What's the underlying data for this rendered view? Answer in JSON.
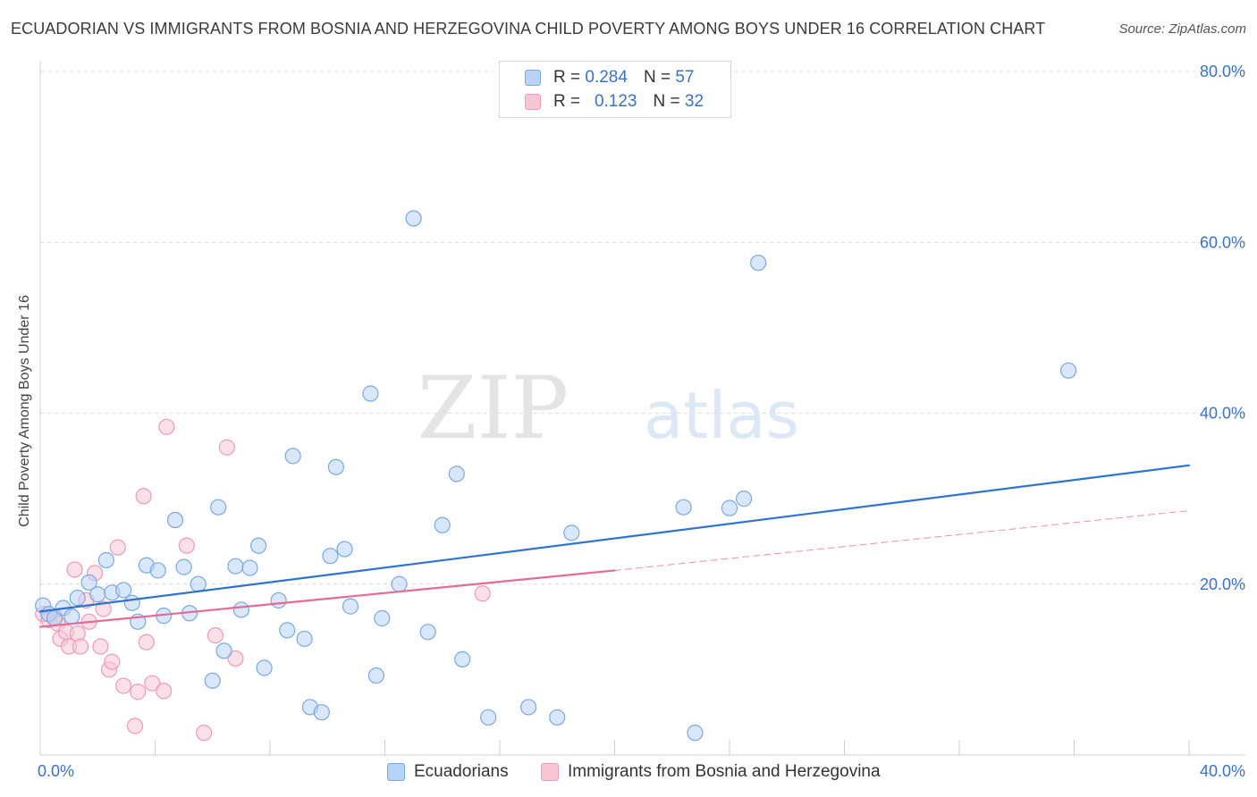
{
  "title": "ECUADORIAN VS IMMIGRANTS FROM BOSNIA AND HERZEGOVINA CHILD POVERTY AMONG BOYS UNDER 16 CORRELATION CHART",
  "source": "Source: ZipAtlas.com",
  "legend": {
    "r_label": "R =",
    "n_label": "N =",
    "rows": [
      {
        "r": "0.284",
        "n": "57"
      },
      {
        "r": "0.123",
        "n": "32"
      }
    ]
  },
  "bottom_legend": [
    "Ecuadorians",
    "Immigrants from Bosnia and Herzegovina"
  ],
  "watermark": {
    "zip": "ZIP",
    "atlas": "atlas"
  },
  "colors": {
    "blue_fill": "#b8d3f5",
    "blue_stroke": "#7aa9e0",
    "blue_line": "#2f72d0",
    "pink_fill": "#f9c6d6",
    "pink_stroke": "#ef9ab6",
    "pink_line": "#e56a95",
    "axis_text": "#3a73c4",
    "grid": "#dcdcdc"
  },
  "chart_data": {
    "type": "scatter",
    "xlabel": "",
    "ylabel": "Child Poverty Among Boys Under 16",
    "xlim": [
      0,
      40
    ],
    "ylim": [
      0,
      80
    ],
    "x_tick_labels": [
      "0.0%",
      "40.0%"
    ],
    "y_ticks": [
      20,
      40,
      60,
      80
    ],
    "y_tick_labels": [
      "20.0%",
      "40.0%",
      "60.0%",
      "80.0%"
    ],
    "series": [
      {
        "name": "Ecuadorians",
        "R": 0.284,
        "N": 57,
        "points": [
          [
            0.1,
            17.5
          ],
          [
            0.3,
            16.5
          ],
          [
            0.5,
            16.0
          ],
          [
            0.8,
            17.2
          ],
          [
            1.1,
            16.2
          ],
          [
            1.3,
            18.4
          ],
          [
            1.7,
            20.2
          ],
          [
            2.0,
            18.8
          ],
          [
            2.3,
            22.8
          ],
          [
            2.5,
            19.0
          ],
          [
            2.9,
            19.3
          ],
          [
            3.2,
            17.8
          ],
          [
            3.4,
            15.6
          ],
          [
            3.7,
            22.2
          ],
          [
            4.1,
            21.6
          ],
          [
            4.3,
            16.3
          ],
          [
            4.7,
            27.5
          ],
          [
            5.0,
            22.0
          ],
          [
            5.2,
            16.6
          ],
          [
            5.5,
            20.0
          ],
          [
            6.0,
            8.7
          ],
          [
            6.2,
            29.0
          ],
          [
            6.4,
            12.2
          ],
          [
            6.8,
            22.1
          ],
          [
            7.0,
            17.0
          ],
          [
            7.3,
            21.9
          ],
          [
            7.6,
            24.5
          ],
          [
            7.8,
            10.2
          ],
          [
            8.3,
            18.1
          ],
          [
            8.6,
            14.6
          ],
          [
            8.8,
            35.0
          ],
          [
            9.2,
            13.6
          ],
          [
            9.4,
            5.6
          ],
          [
            9.8,
            5.0
          ],
          [
            10.1,
            23.3
          ],
          [
            10.3,
            33.7
          ],
          [
            10.6,
            24.1
          ],
          [
            10.8,
            17.4
          ],
          [
            11.5,
            42.3
          ],
          [
            11.7,
            9.3
          ],
          [
            11.9,
            16.0
          ],
          [
            12.5,
            20.0
          ],
          [
            13.0,
            62.8
          ],
          [
            13.5,
            14.4
          ],
          [
            14.0,
            26.9
          ],
          [
            14.5,
            32.9
          ],
          [
            14.7,
            11.2
          ],
          [
            15.6,
            4.4
          ],
          [
            17.0,
            5.6
          ],
          [
            18.0,
            4.4
          ],
          [
            18.5,
            26.0
          ],
          [
            22.4,
            29.0
          ],
          [
            22.8,
            2.6
          ],
          [
            24.0,
            28.9
          ],
          [
            24.5,
            30.0
          ],
          [
            25.0,
            57.6
          ],
          [
            35.8,
            45.0
          ]
        ]
      },
      {
        "name": "Immigrants from Bosnia and Herzegovina",
        "R": 0.123,
        "N": 32,
        "points": [
          [
            0.1,
            16.5
          ],
          [
            0.3,
            15.8
          ],
          [
            0.5,
            16.2
          ],
          [
            0.6,
            15.4
          ],
          [
            0.7,
            13.6
          ],
          [
            0.9,
            14.4
          ],
          [
            1.0,
            12.7
          ],
          [
            1.2,
            21.7
          ],
          [
            1.3,
            14.2
          ],
          [
            1.4,
            12.7
          ],
          [
            1.6,
            18.1
          ],
          [
            1.7,
            15.6
          ],
          [
            1.9,
            21.3
          ],
          [
            2.1,
            12.7
          ],
          [
            2.2,
            17.1
          ],
          [
            2.4,
            10.0
          ],
          [
            2.5,
            10.9
          ],
          [
            2.7,
            24.3
          ],
          [
            2.9,
            8.1
          ],
          [
            3.3,
            3.4
          ],
          [
            3.4,
            7.4
          ],
          [
            3.6,
            30.3
          ],
          [
            3.7,
            13.2
          ],
          [
            3.9,
            8.4
          ],
          [
            4.3,
            7.5
          ],
          [
            4.4,
            38.4
          ],
          [
            5.1,
            24.5
          ],
          [
            5.7,
            2.6
          ],
          [
            6.1,
            14.0
          ],
          [
            6.5,
            36.0
          ],
          [
            6.8,
            11.3
          ],
          [
            15.4,
            18.9
          ]
        ]
      }
    ],
    "trendlines": [
      {
        "series": "Ecuadorians",
        "x": [
          0,
          40
        ],
        "y": [
          16.8,
          33.9
        ],
        "style": "solid"
      },
      {
        "series": "Immigrants from Bosnia and Herzegovina",
        "x": [
          0,
          20
        ],
        "y": [
          15.0,
          21.6
        ],
        "style": "solid"
      },
      {
        "series": "Immigrants from Bosnia and Herzegovina",
        "x": [
          20,
          40
        ],
        "y": [
          21.6,
          28.6
        ],
        "style": "dashed"
      }
    ]
  }
}
